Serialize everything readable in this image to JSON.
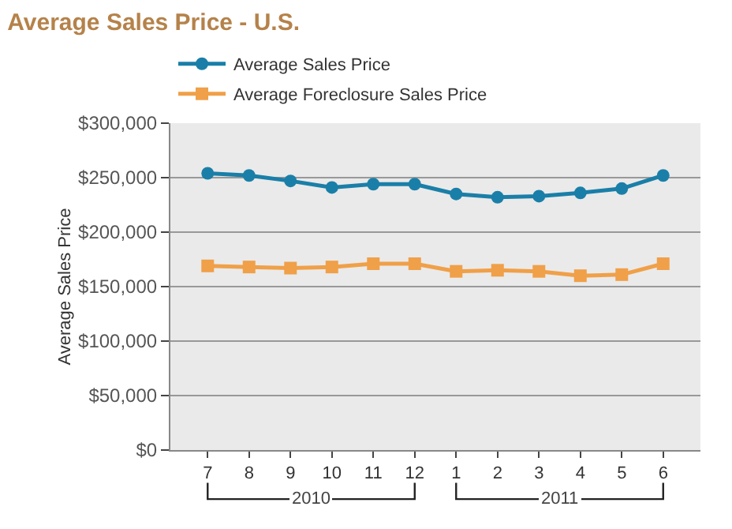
{
  "chart_data": {
    "type": "line",
    "title": "Average Sales Price - U.S.",
    "ylabel": "Average Sales Price",
    "categories": [
      "7",
      "8",
      "9",
      "10",
      "11",
      "12",
      "1",
      "2",
      "3",
      "4",
      "5",
      "6"
    ],
    "series": [
      {
        "name": "Average Sales Price",
        "color": "#1a7fa8",
        "marker": "circle",
        "values": [
          254000,
          252000,
          247000,
          241000,
          244000,
          244000,
          235000,
          232000,
          233000,
          236000,
          240000,
          252000
        ]
      },
      {
        "name": "Average Foreclosure Sales Price",
        "color": "#f0a048",
        "marker": "square",
        "values": [
          169000,
          168000,
          167000,
          168000,
          171000,
          171000,
          164000,
          165000,
          164000,
          160000,
          161000,
          171000
        ]
      }
    ],
    "annotations": [
      "2010",
      "2011"
    ],
    "ylim": [
      0,
      300000
    ],
    "yticks": [
      {
        "value": 0,
        "label": "$0"
      },
      {
        "value": 50000,
        "label": "$50,000"
      },
      {
        "value": 100000,
        "label": "$100,000"
      },
      {
        "value": 150000,
        "label": "$150,000"
      },
      {
        "value": 200000,
        "label": "$200,000"
      },
      {
        "value": 250000,
        "label": "$250,000"
      },
      {
        "value": 300000,
        "label": "$300,000"
      }
    ],
    "grid": "y",
    "legend": "top left",
    "line_style": "solid"
  }
}
